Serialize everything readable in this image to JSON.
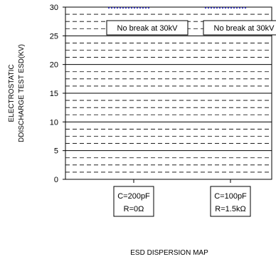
{
  "chart_data": {
    "type": "scatter",
    "title": "",
    "xlabel": "ESD DISPERSION MAP",
    "ylabel_lines": [
      "ELECTROSTATIC",
      "DDISCHARGE TEST ESD(KV)"
    ],
    "ylim": [
      0,
      30
    ],
    "yticks": [
      0,
      5,
      10,
      15,
      20,
      25,
      30
    ],
    "grid": "dashed horizontal minor lines, solid every 5 kV",
    "categories": [
      {
        "line1": "C=200pF",
        "line2": "R=0Ω"
      },
      {
        "line1": "C=100pF",
        "line2": "R=1.5kΩ"
      }
    ],
    "series": [
      {
        "values": [
          30,
          30
        ],
        "marker": "dotted cluster",
        "color": "#2b2bb8"
      }
    ],
    "annotations": [
      {
        "text": "No break at 30kV",
        "category_index": 0
      },
      {
        "text": "No break at 30kV",
        "category_index": 1
      }
    ]
  }
}
